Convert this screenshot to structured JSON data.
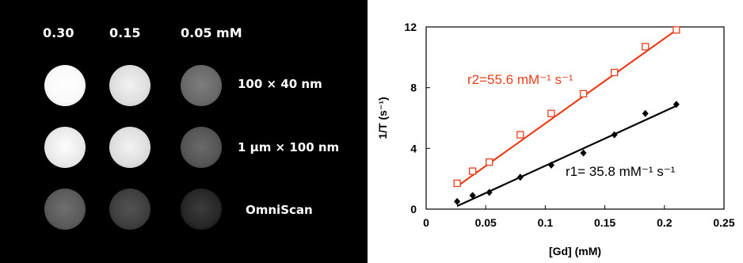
{
  "mri": {
    "concentrations": [
      "0.30",
      "0.15",
      "0.05 mM"
    ],
    "rows": [
      {
        "label": "100 × 40 nm",
        "brightness": [
          0.98,
          0.88,
          0.42
        ]
      },
      {
        "label": "1 μm × 100 nm",
        "brightness": [
          0.92,
          0.88,
          0.34
        ]
      },
      {
        "label": "OmniScan",
        "brightness": [
          0.36,
          0.25,
          0.16
        ]
      }
    ]
  },
  "chart_data": {
    "type": "scatter",
    "xlabel": "[Gd] (mM)",
    "ylabel": "1/T (s⁻¹)",
    "xlim": [
      0,
      0.25
    ],
    "ylim": [
      0,
      12
    ],
    "xticks": [
      "0",
      "0.05",
      "0.1",
      "0.15",
      "0.2",
      "0.25"
    ],
    "yticks": [
      "0",
      "4",
      "8",
      "12"
    ],
    "grid": false,
    "series": [
      {
        "marker": "open-square",
        "color": "#e8401c",
        "x": [
          0.026,
          0.039,
          0.053,
          0.079,
          0.105,
          0.132,
          0.158,
          0.184,
          0.21
        ],
        "y": [
          1.7,
          2.5,
          3.1,
          4.9,
          6.3,
          7.6,
          9.0,
          10.7,
          11.8
        ],
        "fit": {
          "label": "r2=55.6 mM⁻¹ s⁻¹",
          "x": [
            0.026,
            0.21
          ],
          "y": [
            1.5,
            11.8
          ]
        }
      },
      {
        "marker": "filled-diamond",
        "color": "#000000",
        "x": [
          0.026,
          0.039,
          0.053,
          0.079,
          0.105,
          0.132,
          0.158,
          0.184,
          0.21
        ],
        "y": [
          0.5,
          0.9,
          1.1,
          2.1,
          2.9,
          3.7,
          4.9,
          6.3,
          6.9
        ],
        "fit": {
          "label": "r1= 35.8 mM⁻¹ s⁻¹",
          "x": [
            0.026,
            0.21
          ],
          "y": [
            0.2,
            6.8
          ]
        }
      }
    ]
  }
}
